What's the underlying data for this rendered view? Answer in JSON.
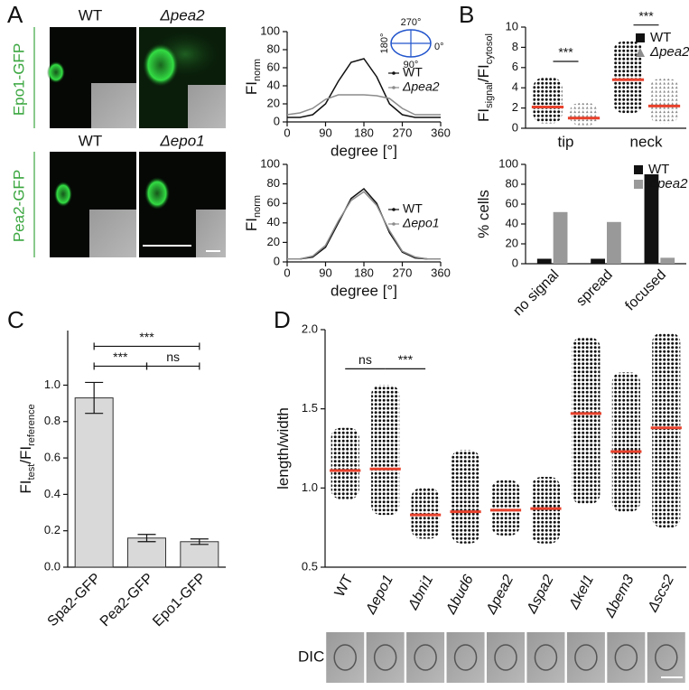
{
  "panel_labels": [
    "A",
    "B",
    "C",
    "D"
  ],
  "images": {
    "headers": [
      "WT",
      "Δpea2",
      "WT",
      "Δepo1"
    ],
    "row_labels": [
      "Epo1-GFP",
      "Pea2-GFP"
    ],
    "dic_label": "DIC"
  },
  "chart_data": [
    {
      "type": "line",
      "ylabel": [
        "FI",
        "norm"
      ],
      "xlabel": "degree [°]",
      "x": [
        0,
        30,
        60,
        90,
        120,
        150,
        180,
        210,
        240,
        270,
        300,
        330,
        360
      ],
      "xlim": [
        0,
        360
      ],
      "xticks": [
        0,
        90,
        180,
        270,
        360
      ],
      "ylim": [
        0,
        100
      ],
      "yticks": [
        0,
        20,
        40,
        60,
        80,
        100
      ],
      "legend": "center right",
      "annotations": [
        "270°",
        "180°",
        "90°",
        "0°"
      ],
      "series": [
        {
          "name": "WT",
          "color": "#111111",
          "values": [
            5,
            5,
            8,
            20,
            45,
            66,
            70,
            50,
            20,
            8,
            5,
            5,
            5
          ]
        },
        {
          "name": "Δpea2",
          "color": "#8c8c8c",
          "values": [
            8,
            10,
            15,
            25,
            30,
            30,
            30,
            29,
            26,
            15,
            8,
            8,
            8
          ]
        }
      ]
    },
    {
      "type": "line",
      "ylabel": [
        "FI",
        "norm"
      ],
      "xlabel": "degree [°]",
      "x": [
        0,
        30,
        60,
        90,
        120,
        150,
        180,
        210,
        240,
        270,
        300,
        330,
        360
      ],
      "xlim": [
        0,
        360
      ],
      "xticks": [
        0,
        90,
        180,
        270,
        360
      ],
      "ylim": [
        0,
        100
      ],
      "yticks": [
        0,
        20,
        40,
        60,
        80,
        100
      ],
      "legend": "center right",
      "series": [
        {
          "name": "WT",
          "color": "#111111",
          "values": [
            3,
            3,
            5,
            15,
            40,
            65,
            75,
            60,
            30,
            10,
            4,
            3,
            3
          ]
        },
        {
          "name": "Δepo1",
          "color": "#8c8c8c",
          "values": [
            3,
            3,
            6,
            17,
            42,
            63,
            72,
            58,
            32,
            11,
            5,
            3,
            3
          ]
        }
      ]
    },
    {
      "type": "strip",
      "ylabel": [
        "FI",
        "signal",
        "/FI",
        "cytosol"
      ],
      "categories": [
        "tip",
        "neck"
      ],
      "ylim": [
        0,
        10
      ],
      "yticks": [
        0,
        2,
        4,
        6,
        8,
        10
      ],
      "legend": "upper right",
      "median_color": "#e8412c",
      "series": [
        {
          "name": "WT",
          "color": "#111111",
          "marker": "square",
          "median": [
            2.1,
            4.8
          ],
          "min": [
            0.5,
            1.5
          ],
          "max": [
            5.0,
            8.6
          ]
        },
        {
          "name": "Δpea2",
          "color": "#8c8c8c",
          "marker": "triangle",
          "median": [
            1.0,
            2.2
          ],
          "min": [
            0.3,
            0.5
          ],
          "max": [
            2.5,
            4.9
          ]
        }
      ],
      "significance": [
        {
          "label": "***",
          "category": "tip"
        },
        {
          "label": "***",
          "category": "neck"
        }
      ]
    },
    {
      "type": "bar",
      "ylabel": [
        "% cells"
      ],
      "categories": [
        "no signal",
        "spread",
        "focused"
      ],
      "ylim": [
        0,
        100
      ],
      "yticks": [
        0,
        20,
        40,
        60,
        80,
        100
      ],
      "legend": "upper right",
      "series": [
        {
          "name": "WT",
          "color": "#111111",
          "values": [
            5,
            5,
            90
          ]
        },
        {
          "name": "Δpea2",
          "color": "#999999",
          "values": [
            52,
            42,
            6
          ]
        }
      ]
    },
    {
      "type": "bar",
      "ylabel": [
        "FI",
        "test",
        "/FI",
        "reference"
      ],
      "categories": [
        "Spa2-GFP",
        "Pea2-GFP",
        "Epo1-GFP"
      ],
      "values": [
        0.93,
        0.16,
        0.14
      ],
      "errors": [
        0.085,
        0.02,
        0.015
      ],
      "color": "#d9d9d9",
      "ylim": [
        0,
        1.3
      ],
      "yticks": [
        {
          "value": 0,
          "label": "0.0"
        },
        0.2,
        0.4,
        0.6,
        0.8,
        {
          "value": 1,
          "label": "1.0"
        }
      ],
      "significance": [
        {
          "label": "***",
          "between": [
            "Spa2-GFP",
            "Pea2-GFP"
          ]
        },
        {
          "label": "ns",
          "between": [
            "Pea2-GFP",
            "Epo1-GFP"
          ]
        },
        {
          "label": "***",
          "between": [
            "Spa2-GFP",
            "Epo1-GFP"
          ]
        }
      ]
    },
    {
      "type": "strip",
      "ylabel": [
        "length/width"
      ],
      "categories": [
        "WT",
        "Δepo1",
        "Δbni1",
        "Δbud6",
        "Δpea2",
        "Δspa2",
        "Δkel1",
        "Δbem3",
        "Δscs2"
      ],
      "ylim": [
        0.5,
        2.0
      ],
      "yticks": [
        0.5,
        {
          "value": 1,
          "label": "1.0"
        },
        1.5,
        {
          "value": 2,
          "label": "2.0"
        }
      ],
      "median_color": "#e8412c",
      "series": [
        {
          "color": "#111111",
          "median": [
            1.11,
            1.12,
            0.83,
            0.85,
            0.86,
            0.87,
            1.47,
            1.23,
            1.38
          ],
          "min": [
            0.93,
            0.83,
            0.68,
            0.65,
            0.7,
            0.65,
            0.9,
            0.85,
            0.75
          ],
          "max": [
            1.38,
            1.65,
            1.0,
            1.24,
            1.05,
            1.07,
            1.95,
            1.73,
            1.98
          ]
        }
      ],
      "significance": [
        {
          "label": "ns",
          "between": [
            "WT",
            "Δepo1"
          ]
        },
        {
          "label": "***",
          "between": [
            "Δepo1",
            "Δbni1"
          ]
        }
      ]
    }
  ]
}
